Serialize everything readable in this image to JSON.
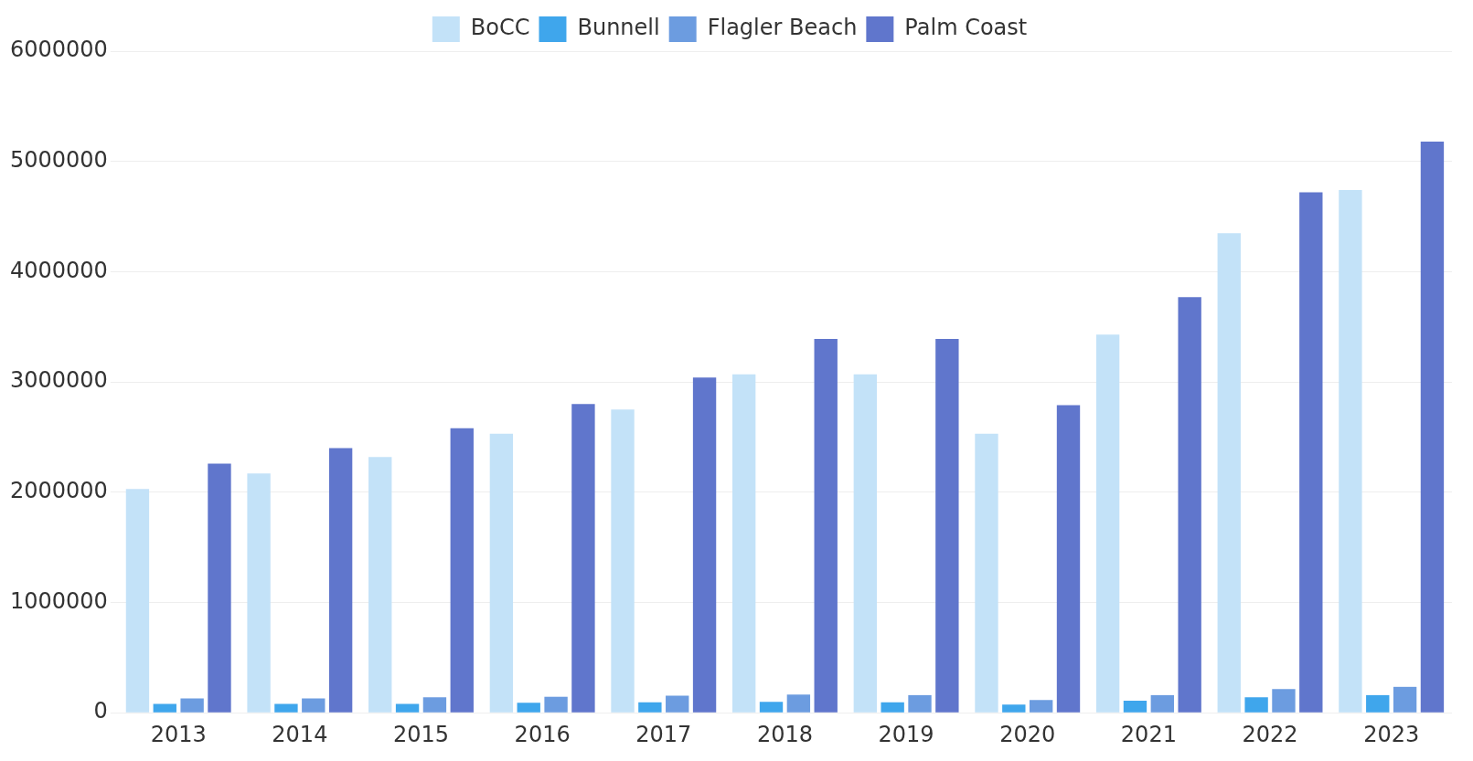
{
  "chart_data": {
    "type": "bar",
    "categories": [
      "2013",
      "2014",
      "2015",
      "2016",
      "2017",
      "2018",
      "2019",
      "2020",
      "2021",
      "2022",
      "2023"
    ],
    "series": [
      {
        "name": "BoCC",
        "color": "#c3e2f8",
        "values": [
          2030000,
          2170000,
          2320000,
          2530000,
          2750000,
          3070000,
          3070000,
          2530000,
          3430000,
          4350000,
          4740000
        ]
      },
      {
        "name": "Bunnell",
        "color": "#3fa6ec",
        "values": [
          80000,
          80000,
          80000,
          90000,
          95000,
          100000,
          95000,
          75000,
          110000,
          140000,
          160000
        ]
      },
      {
        "name": "Flagler Beach",
        "color": "#6c9ce0",
        "values": [
          130000,
          130000,
          140000,
          145000,
          155000,
          165000,
          160000,
          115000,
          160000,
          215000,
          235000
        ]
      },
      {
        "name": "Palm Coast",
        "color": "#6076cc",
        "values": [
          2260000,
          2400000,
          2580000,
          2800000,
          3040000,
          3390000,
          3390000,
          2790000,
          3770000,
          4720000,
          5180000
        ]
      }
    ],
    "ylim": [
      0,
      6000000
    ],
    "yticks": [
      0,
      1000000,
      2000000,
      3000000,
      4000000,
      5000000,
      6000000
    ],
    "grid": "y",
    "legend": "top"
  }
}
